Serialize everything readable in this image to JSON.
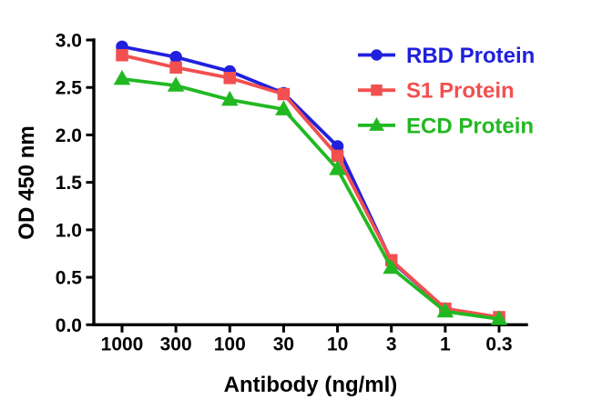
{
  "chart_data": {
    "type": "line",
    "title": "",
    "xlabel": "Antibody (ng/ml)",
    "ylabel": "OD 450 nm",
    "x_scale": "log-style categories, evenly spaced, decreasing left to right",
    "categories": [
      "1000",
      "300",
      "100",
      "30",
      "10",
      "3",
      "1",
      "0.3"
    ],
    "y_ticks": [
      "3.0",
      "2.5",
      "2.0",
      "1.5",
      "1.0",
      "0.5",
      "0.0"
    ],
    "ylim": [
      0.0,
      3.0
    ],
    "grid": false,
    "legend_position": "top-right",
    "axis_color": "#000000",
    "background": "#FFFFFF",
    "series": [
      {
        "name": "RBD Protein",
        "marker": "circle",
        "color": "#2020DE",
        "values": [
          2.93,
          2.82,
          2.67,
          2.44,
          1.88,
          0.67,
          0.17,
          0.07
        ]
      },
      {
        "name": "S1 Protein",
        "marker": "square",
        "color": "#F25050",
        "values": [
          2.84,
          2.71,
          2.6,
          2.43,
          1.78,
          0.68,
          0.17,
          0.08
        ]
      },
      {
        "name": "ECD Protein",
        "marker": "triangle",
        "color": "#22B822",
        "values": [
          2.59,
          2.52,
          2.37,
          2.27,
          1.64,
          0.6,
          0.14,
          0.06
        ]
      }
    ]
  }
}
